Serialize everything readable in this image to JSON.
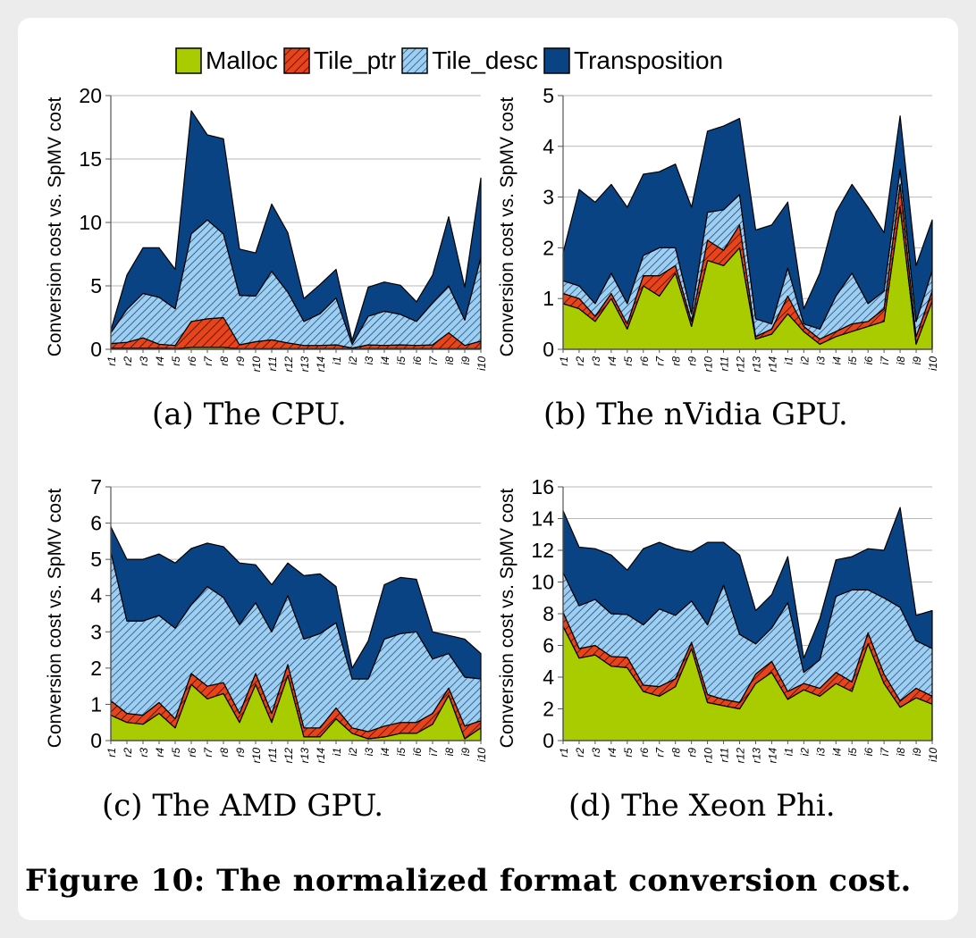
{
  "legend": [
    {
      "label": "Malloc",
      "color": "#a8cc00",
      "pattern": "solid"
    },
    {
      "label": "Tile_ptr",
      "color": "#e8441c",
      "pattern": "hatch"
    },
    {
      "label": "Tile_desc",
      "color": "#82c0ee",
      "pattern": "hatch"
    },
    {
      "label": "Transposition",
      "color": "#0a4383",
      "pattern": "solid"
    }
  ],
  "figure_caption": "Figure 10: The normalized format conversion cost.",
  "chart_data": [
    {
      "type": "area",
      "stacked": true,
      "caption": "(a) The CPU.",
      "ylabel": "Conversion cost vs. SpMV cost",
      "ylim": [
        0,
        20
      ],
      "yticks": [
        0,
        5,
        10,
        15,
        20
      ],
      "grid": true,
      "categories": [
        "r1",
        "r2",
        "r3",
        "r4",
        "r5",
        "r6",
        "r7",
        "r8",
        "r9",
        "r10",
        "r11",
        "r12",
        "r13",
        "r14",
        "i1",
        "i2",
        "i3",
        "i4",
        "i5",
        "i6",
        "i7",
        "i8",
        "i9",
        "i10"
      ],
      "series": [
        {
          "name": "Malloc",
          "values": [
            0.1,
            0.1,
            0.1,
            0.1,
            0.05,
            0.15,
            0.15,
            0.15,
            0.05,
            0.05,
            0.05,
            0.05,
            0.05,
            0.05,
            0.05,
            0.05,
            0.05,
            0.05,
            0.05,
            0.05,
            0.05,
            0.05,
            0.05,
            0.05
          ]
        },
        {
          "name": "Tile_ptr",
          "values": [
            0.35,
            0.45,
            0.8,
            0.3,
            0.25,
            2.05,
            2.25,
            2.35,
            0.3,
            0.55,
            0.7,
            0.45,
            0.25,
            0.25,
            0.3,
            0.05,
            0.3,
            0.25,
            0.3,
            0.25,
            0.3,
            1.25,
            0.25,
            0.6
          ]
        },
        {
          "name": "Tile_desc",
          "values": [
            0.85,
            2.6,
            3.5,
            3.7,
            2.9,
            6.9,
            7.8,
            6.6,
            3.9,
            3.6,
            5.4,
            4.0,
            1.9,
            2.5,
            3.7,
            0.3,
            2.25,
            2.7,
            2.4,
            1.9,
            3.3,
            3.7,
            2.0,
            6.6
          ]
        },
        {
          "name": "Transposition",
          "values": [
            0.2,
            2.7,
            3.6,
            3.9,
            3.1,
            9.7,
            6.7,
            7.5,
            3.65,
            3.4,
            5.3,
            4.7,
            1.8,
            2.3,
            2.25,
            0.3,
            2.3,
            2.3,
            2.3,
            1.55,
            2.2,
            5.45,
            2.6,
            6.25
          ]
        }
      ]
    },
    {
      "type": "area",
      "stacked": true,
      "caption": "(b) The nVidia GPU.",
      "ylabel": "Conversion cost vs. SpMV cost",
      "ylim": [
        0,
        5
      ],
      "yticks": [
        0,
        1,
        2,
        3,
        4,
        5
      ],
      "grid": true,
      "categories": [
        "r1",
        "r2",
        "r3",
        "r4",
        "r5",
        "r6",
        "r7",
        "r8",
        "r9",
        "r10",
        "r11",
        "r12",
        "r13",
        "r14",
        "i1",
        "i2",
        "i3",
        "i4",
        "i5",
        "i6",
        "i7",
        "i8",
        "i9",
        "i10"
      ],
      "series": [
        {
          "name": "Malloc",
          "values": [
            0.9,
            0.8,
            0.55,
            1.0,
            0.4,
            1.25,
            1.05,
            1.5,
            0.45,
            1.75,
            1.65,
            2.0,
            0.2,
            0.3,
            0.7,
            0.35,
            0.1,
            0.25,
            0.35,
            0.45,
            0.55,
            2.8,
            0.1,
            0.95
          ]
        },
        {
          "name": "Tile_ptr",
          "values": [
            0.2,
            0.2,
            0.1,
            0.1,
            0.1,
            0.2,
            0.4,
            0.15,
            0.1,
            0.4,
            0.3,
            0.45,
            0.05,
            0.1,
            0.35,
            0.1,
            0.1,
            0.1,
            0.15,
            0.1,
            0.25,
            0.45,
            0.15,
            0.2
          ]
        },
        {
          "name": "Tile_desc",
          "values": [
            0.25,
            0.25,
            0.25,
            0.4,
            0.4,
            0.4,
            0.55,
            0.35,
            0.15,
            0.55,
            0.8,
            0.6,
            0.35,
            0.1,
            0.55,
            0.05,
            0.2,
            0.7,
            1.0,
            0.35,
            0.35,
            0.3,
            0.3,
            0.4
          ]
        },
        {
          "name": "Transposition",
          "values": [
            0.55,
            1.9,
            2.0,
            1.75,
            1.9,
            1.6,
            1.5,
            1.65,
            2.1,
            1.6,
            1.65,
            1.5,
            1.75,
            1.95,
            1.3,
            0.3,
            1.1,
            1.65,
            1.75,
            1.9,
            1.15,
            1.05,
            1.1,
            1.0
          ]
        }
      ]
    },
    {
      "type": "area",
      "stacked": true,
      "caption": "(c) The AMD GPU.",
      "ylabel": "Conversion cost vs. SpMV cost",
      "ylim": [
        0,
        7
      ],
      "yticks": [
        0,
        1,
        2,
        3,
        4,
        5,
        6,
        7
      ],
      "grid": true,
      "categories": [
        "r1",
        "r2",
        "r3",
        "r4",
        "r5",
        "r6",
        "r7",
        "r8",
        "r9",
        "r10",
        "r11",
        "r12",
        "r13",
        "r14",
        "i1",
        "i2",
        "i3",
        "i4",
        "i5",
        "i6",
        "i7",
        "i8",
        "i9",
        "i10"
      ],
      "series": [
        {
          "name": "Malloc",
          "values": [
            0.7,
            0.5,
            0.45,
            0.75,
            0.35,
            1.55,
            1.15,
            1.3,
            0.5,
            1.55,
            0.5,
            1.8,
            0.1,
            0.1,
            0.6,
            0.2,
            0.05,
            0.1,
            0.2,
            0.2,
            0.45,
            1.25,
            0.05,
            0.35
          ]
        },
        {
          "name": "Tile_ptr",
          "values": [
            0.4,
            0.25,
            0.25,
            0.3,
            0.25,
            0.3,
            0.35,
            0.3,
            0.25,
            0.3,
            0.25,
            0.3,
            0.25,
            0.25,
            0.3,
            0.15,
            0.2,
            0.3,
            0.3,
            0.3,
            0.3,
            0.2,
            0.35,
            0.2
          ]
        },
        {
          "name": "Tile_desc",
          "values": [
            4.1,
            2.55,
            2.6,
            2.4,
            2.5,
            1.9,
            2.75,
            2.35,
            2.45,
            1.95,
            2.25,
            1.9,
            2.45,
            2.6,
            2.35,
            1.35,
            1.45,
            2.4,
            2.45,
            2.5,
            1.5,
            0.95,
            1.35,
            1.15
          ]
        },
        {
          "name": "Transposition",
          "values": [
            0.7,
            1.7,
            1.7,
            1.7,
            1.8,
            1.55,
            1.2,
            1.4,
            1.7,
            1.05,
            1.3,
            0.9,
            1.75,
            1.65,
            1.0,
            0.3,
            1.05,
            1.5,
            1.55,
            1.45,
            0.75,
            0.5,
            1.05,
            0.7
          ]
        }
      ]
    },
    {
      "type": "area",
      "stacked": true,
      "caption": "(d) The Xeon Phi.",
      "ylabel": "Conversion cost vs. SpMV cost",
      "ylim": [
        0,
        16
      ],
      "yticks": [
        0,
        2,
        4,
        6,
        8,
        10,
        12,
        14,
        16
      ],
      "grid": true,
      "categories": [
        "r1",
        "r2",
        "r3",
        "r4",
        "r5",
        "r6",
        "r7",
        "r8",
        "r9",
        "r10",
        "r11",
        "r12",
        "r13",
        "r14",
        "i1",
        "i2",
        "i3",
        "i4",
        "i5",
        "i6",
        "i7",
        "i8",
        "i9",
        "i10"
      ],
      "series": [
        {
          "name": "Malloc",
          "values": [
            7.2,
            5.2,
            5.4,
            4.7,
            4.6,
            3.1,
            2.8,
            3.4,
            5.8,
            2.4,
            2.2,
            2.0,
            3.6,
            4.3,
            2.6,
            3.2,
            2.8,
            3.6,
            3.1,
            6.1,
            3.6,
            2.1,
            2.7,
            2.3
          ]
        },
        {
          "name": "Tile_ptr",
          "values": [
            0.9,
            0.6,
            0.6,
            0.6,
            0.65,
            0.4,
            0.6,
            0.5,
            0.4,
            0.5,
            0.4,
            0.4,
            0.6,
            0.7,
            0.5,
            0.4,
            0.5,
            0.7,
            0.6,
            0.7,
            0.6,
            0.4,
            0.6,
            0.5
          ]
        },
        {
          "name": "Tile_desc",
          "values": [
            2.5,
            2.7,
            2.9,
            2.7,
            2.7,
            3.8,
            4.9,
            4.0,
            2.6,
            4.4,
            7.2,
            4.3,
            1.9,
            2.1,
            5.6,
            0.7,
            1.8,
            4.8,
            5.8,
            2.7,
            4.8,
            5.9,
            3.0,
            3.0
          ]
        },
        {
          "name": "Transposition",
          "values": [
            3.9,
            3.7,
            3.2,
            3.7,
            2.8,
            4.8,
            4.2,
            4.2,
            3.1,
            5.2,
            2.7,
            5.0,
            2.1,
            2.1,
            2.9,
            0.9,
            2.6,
            2.3,
            2.1,
            2.6,
            3.0,
            6.3,
            1.6,
            2.4
          ]
        }
      ]
    }
  ]
}
